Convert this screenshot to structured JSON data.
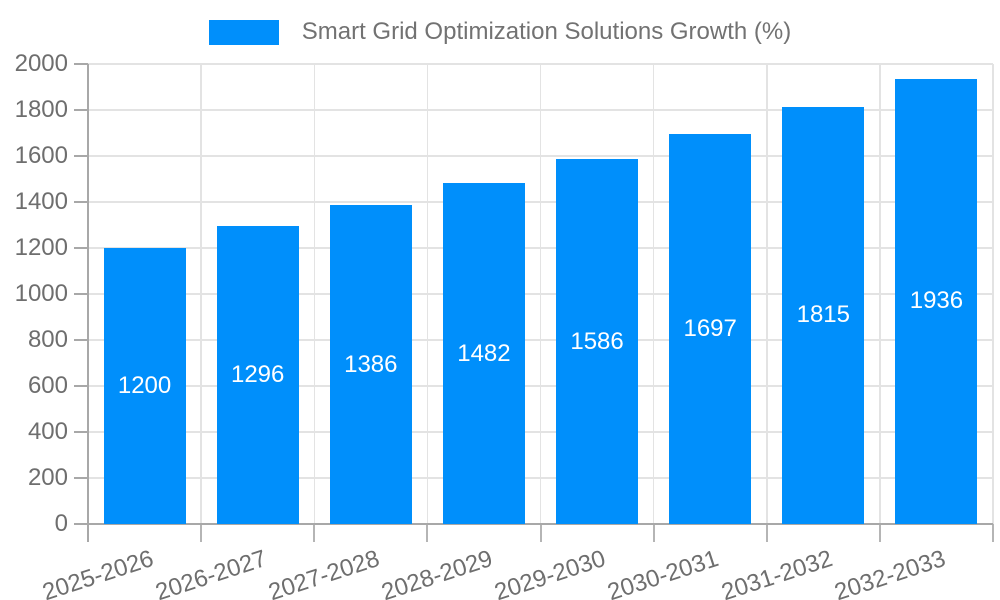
{
  "chart_data": {
    "type": "bar",
    "title": "Smart Grid Optimization Solutions Growth (%)",
    "legend": {
      "position": "top",
      "entries": [
        "Smart Grid Optimization Solutions Growth (%)"
      ]
    },
    "categories": [
      "2025-2026",
      "2026-2027",
      "2027-2028",
      "2028-2029",
      "2029-2030",
      "2030-2031",
      "2031-2032",
      "2032-2033"
    ],
    "series": [
      {
        "name": "Smart Grid Optimization Solutions Growth (%)",
        "values": [
          1200,
          1296,
          1386,
          1482,
          1586,
          1697,
          1815,
          1936
        ]
      }
    ],
    "xlabel": "",
    "ylabel": "",
    "ylim": [
      0,
      2000
    ],
    "yticks": [
      0,
      200,
      400,
      600,
      800,
      1000,
      1200,
      1400,
      1600,
      1800,
      2000
    ],
    "grid": true,
    "x_label_rotation_deg": -18,
    "value_labels_position": "inside-center",
    "colors": {
      "bar": "#008FFB",
      "value_label": "#FFFFFF",
      "text": "#6E6E6E",
      "grid": "#E3E3E3",
      "axis": "#A8A8A8"
    }
  }
}
